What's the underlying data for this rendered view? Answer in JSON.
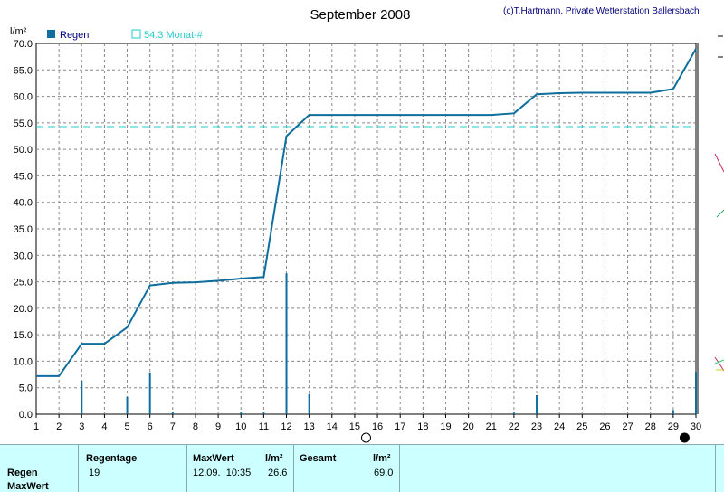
{
  "title": "September 2008",
  "copyright": "(c)T.Hartmann, Private Wetterstation Ballersbach",
  "legend": {
    "rain_label": "Regen",
    "avg_label": "54.3 Monat-#",
    "rain_color": "#0e6e9e",
    "avg_color": "#22cccc"
  },
  "chart_data": {
    "type": "bar",
    "title": "September 2008",
    "ylabel": "l/m²",
    "ylim": [
      0,
      70
    ],
    "xlim": [
      1,
      30
    ],
    "yticks": [
      "0.0",
      "5.0",
      "10.0",
      "15.0",
      "20.0",
      "25.0",
      "30.0",
      "35.0",
      "40.0",
      "45.0",
      "50.0",
      "55.0",
      "60.0",
      "65.0",
      "70.0"
    ],
    "xticks": [
      "1",
      "2",
      "3",
      "4",
      "5",
      "6",
      "7",
      "8",
      "9",
      "10",
      "11",
      "12",
      "13",
      "14",
      "15",
      "16",
      "17",
      "18",
      "19",
      "20",
      "21",
      "22",
      "23",
      "24",
      "25",
      "26",
      "27",
      "28",
      "29",
      "30"
    ],
    "daily_bars": [
      {
        "x": 3,
        "y": 6.3
      },
      {
        "x": 5,
        "y": 3.3
      },
      {
        "x": 6,
        "y": 7.9
      },
      {
        "x": 7,
        "y": 0.5
      },
      {
        "x": 10,
        "y": 0.3
      },
      {
        "x": 11,
        "y": 0.3
      },
      {
        "x": 12,
        "y": 26.6
      },
      {
        "x": 13,
        "y": 3.8
      },
      {
        "x": 22,
        "y": 0.3
      },
      {
        "x": 23,
        "y": 3.6
      },
      {
        "x": 29,
        "y": 0.8
      },
      {
        "x": 30,
        "y": 8.0
      }
    ],
    "cumulative": {
      "x": [
        1,
        2,
        3,
        4,
        5,
        6,
        7,
        8,
        9,
        10,
        11,
        12,
        13,
        14,
        15,
        16,
        17,
        18,
        19,
        20,
        21,
        22,
        23,
        24,
        25,
        26,
        27,
        28,
        29,
        30
      ],
      "y": [
        7.2,
        7.2,
        13.3,
        13.3,
        16.4,
        24.3,
        24.8,
        24.9,
        25.2,
        25.6,
        25.9,
        52.5,
        56.5,
        56.5,
        56.5,
        56.5,
        56.5,
        56.5,
        56.5,
        56.5,
        56.5,
        56.8,
        60.4,
        60.6,
        60.7,
        60.7,
        60.7,
        60.7,
        61.4,
        69.0
      ]
    },
    "monthly_average": 54.3,
    "grid": true,
    "moon_phases": [
      {
        "x": 15.5,
        "phase": "full"
      },
      {
        "x": 29.5,
        "phase": "new"
      }
    ]
  },
  "stats": {
    "row_regen": "Regen",
    "row_maxwert": "MaxWert",
    "regentage_header": "Regentage",
    "regentage_value": "19",
    "maxwert_header": "MaxWert",
    "maxwert_unit": "l/m²",
    "maxwert_date": "12.09.  10:35",
    "maxwert_value": "26.6",
    "gesamt_header": "Gesamt",
    "gesamt_unit": "l/m²",
    "gesamt_value": "69.0"
  }
}
